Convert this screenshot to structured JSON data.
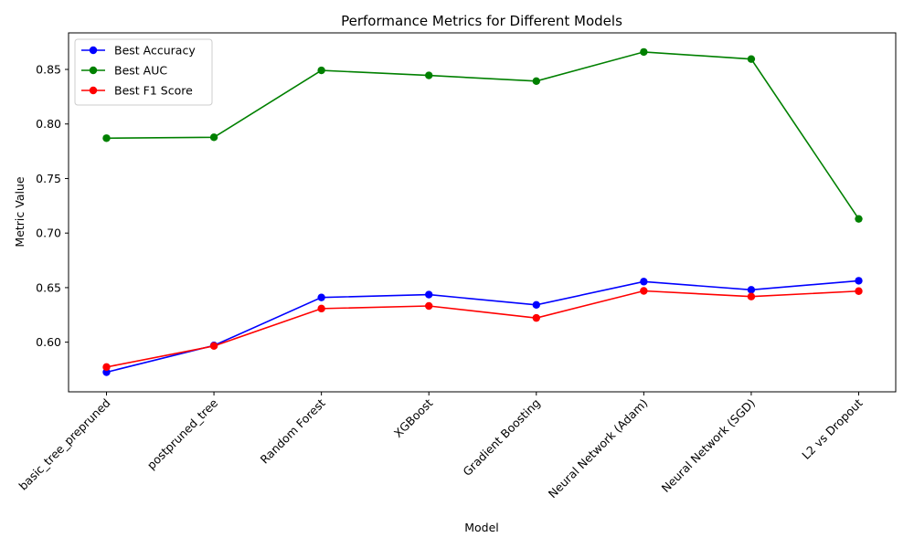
{
  "chart_data": {
    "type": "line",
    "title": "Performance Metrics for Different Models",
    "xlabel": "Model",
    "ylabel": "Metric Value",
    "categories": [
      "basic_tree_prepruned",
      "postpruned_tree",
      "Random Forest",
      "XGBoost",
      "Gradient Boosting",
      "Neural Network (Adam)",
      "Neural Network (SGD)",
      "L2 vs Dropout"
    ],
    "ylim": [
      0.5545,
      0.8835
    ],
    "yticks": [
      0.6,
      0.65,
      0.7,
      0.75,
      0.8,
      0.85
    ],
    "ytick_labels": [
      "0.60",
      "0.65",
      "0.70",
      "0.75",
      "0.80",
      "0.85"
    ],
    "grid": false,
    "legend_position": "top-left",
    "series": [
      {
        "name": "Best Accuracy",
        "color": "#0000ff",
        "marker": "circle",
        "values": [
          0.5725,
          0.597,
          0.641,
          0.6436,
          0.6342,
          0.6555,
          0.648,
          0.6563
        ]
      },
      {
        "name": "Best AUC",
        "color": "#008000",
        "marker": "circle",
        "values": [
          0.787,
          0.7878,
          0.8491,
          0.8445,
          0.8393,
          0.866,
          0.8595,
          0.713
        ]
      },
      {
        "name": "Best F1 Score",
        "color": "#ff0000",
        "marker": "circle",
        "values": [
          0.5772,
          0.5965,
          0.6308,
          0.6332,
          0.6222,
          0.647,
          0.6418,
          0.6468
        ]
      }
    ]
  }
}
